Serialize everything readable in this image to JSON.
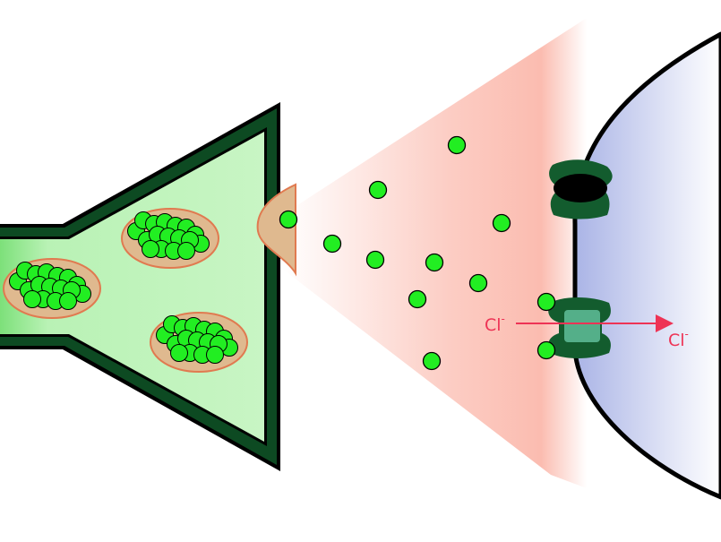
{
  "labels": {
    "ion_left": "Cl",
    "ion_left_charge": "-",
    "ion_right": "Cl",
    "ion_right_charge": "-"
  },
  "colors": {
    "axon_outer": "#0d4a22",
    "axon_fill": "#b9f2b5",
    "vesicle_fill": "#dfb98f",
    "vesicle_border": "#e07a50",
    "transmitter": "#22ee22",
    "cleft": "#fbbcb0",
    "postsynaptic": "#b3bde8",
    "receptor": "#135c2e",
    "arrow": "#ee3355"
  },
  "icons": {
    "presynaptic": "presynaptic-terminal-icon",
    "vesicle": "synaptic-vesicle-icon",
    "molecule": "neurotransmitter-molecule-icon",
    "receptor": "receptor-channel-icon",
    "arrow": "ion-flow-arrow-icon"
  }
}
